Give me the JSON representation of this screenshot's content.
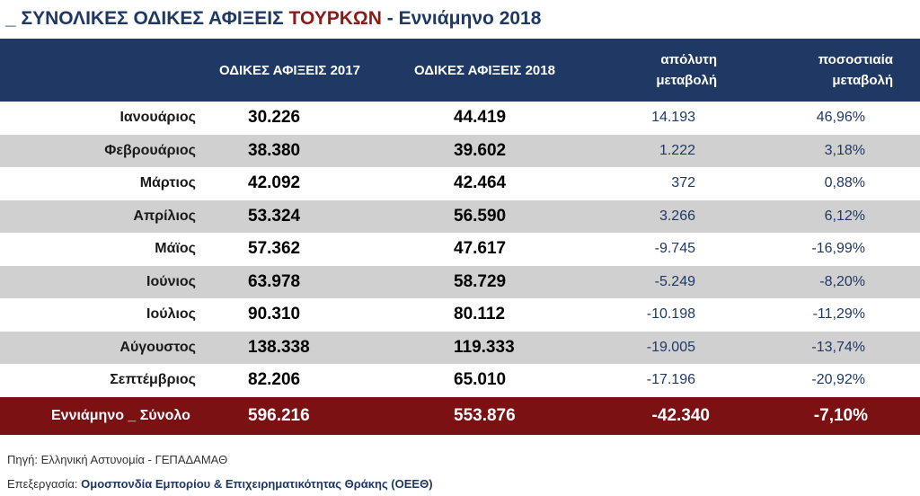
{
  "title": {
    "prefix": "_ ΣΥΝΟΛΙΚΕΣ ΟΔΙΚΕΣ ΑΦΙΞΕΙΣ ",
    "highlight": "ΤΟΥΡΚΩΝ",
    "suffix": " - Εννιάμηνο 2018"
  },
  "colors": {
    "header_bg": "#1F3864",
    "total_bg": "#7B1113",
    "alt_row_bg": "#D0D0D0",
    "highlight_text": "#8B1A1A"
  },
  "chart_data": {
    "type": "table",
    "columns": [
      "",
      "ΟΔΙΚΕΣ ΑΦΙΞΕΙΣ 2017",
      "ΟΔΙΚΕΣ ΑΦΙΞΕΙΣ  2018",
      "απόλυτη μεταβολή",
      "ποσοστιαία μεταβολή"
    ],
    "rows": [
      {
        "month": "Ιανουάριος",
        "v2017": "30.226",
        "v2018": "44.419",
        "abs": "14.193",
        "pct": "46,96%"
      },
      {
        "month": "Φεβρουάριος",
        "v2017": "38.380",
        "v2018": "39.602",
        "abs": "1.222",
        "pct": "3,18%"
      },
      {
        "month": "Μάρτιος",
        "v2017": "42.092",
        "v2018": "42.464",
        "abs": "372",
        "pct": "0,88%"
      },
      {
        "month": "Απρίλιος",
        "v2017": "53.324",
        "v2018": "56.590",
        "abs": "3.266",
        "pct": "6,12%"
      },
      {
        "month": "Μάϊος",
        "v2017": "57.362",
        "v2018": "47.617",
        "abs": "-9.745",
        "pct": "-16,99%"
      },
      {
        "month": "Ιούνιος",
        "v2017": "63.978",
        "v2018": "58.729",
        "abs": "-5.249",
        "pct": "-8,20%"
      },
      {
        "month": "Ιούλιος",
        "v2017": "90.310",
        "v2018": "80.112",
        "abs": "-10.198",
        "pct": "-11,29%"
      },
      {
        "month": "Αύγουστος",
        "v2017": "138.338",
        "v2018": "119.333",
        "abs": "-19.005",
        "pct": "-13,74%"
      },
      {
        "month": "Σεπτέμβριος",
        "v2017": "82.206",
        "v2018": "65.010",
        "abs": "-17.196",
        "pct": "-20,92%"
      }
    ],
    "total": {
      "month": "Εννιάμηνο _ Σύνολο",
      "v2017": "596.216",
      "v2018": "553.876",
      "abs": "-42.340",
      "pct": "-7,10%"
    }
  },
  "footer": {
    "source": "Πηγή: Ελληνική Αστυνομία - ΓΕΠΑΔΑΜΑΘ",
    "processing_label": "Επεξεργασία: ",
    "processing_org": "Ομοσπονδία Εμπορίου & Επιχειρηματικότητας Θράκης (ΟΕΕΘ)"
  }
}
